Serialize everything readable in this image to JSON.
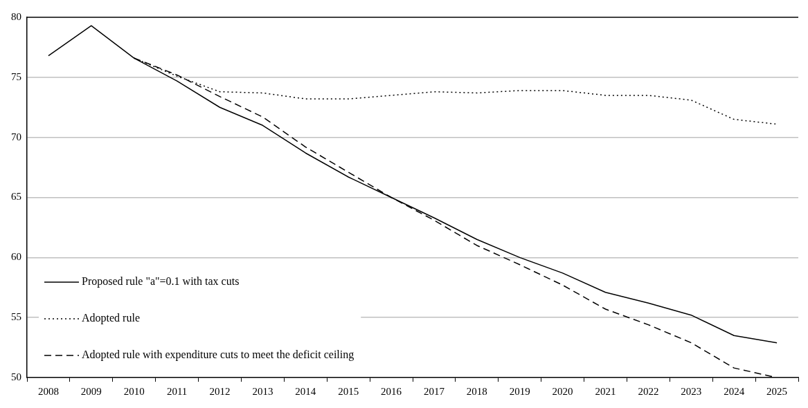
{
  "chart_data": {
    "type": "line",
    "categories": [
      "2008",
      "2009",
      "2010",
      "2011",
      "2012",
      "2013",
      "2014",
      "2015",
      "2016",
      "2017",
      "2018",
      "2019",
      "2020",
      "2021",
      "2022",
      "2023",
      "2024",
      "2025"
    ],
    "series": [
      {
        "name": "Proposed rule \"a\"=0.1 with tax cuts",
        "color": "#000000",
        "line_style": "solid",
        "values": [
          76.8,
          79.3,
          76.6,
          74.7,
          72.5,
          71.0,
          68.7,
          66.7,
          65.0,
          63.3,
          61.5,
          60.0,
          58.7,
          57.1,
          56.2,
          55.2,
          53.5,
          52.9
        ]
      },
      {
        "name": "Adopted rule",
        "color": "#000000",
        "line_style": "dotted",
        "values": [
          null,
          null,
          76.6,
          75.1,
          73.8,
          73.7,
          73.2,
          73.2,
          73.5,
          73.8,
          73.7,
          73.9,
          73.9,
          73.5,
          73.5,
          73.1,
          71.5,
          71.1
        ]
      },
      {
        "name": "Adopted rule with expenditure cuts to meet the deficit ceiling",
        "color": "#000000",
        "line_style": "dashed",
        "values": [
          null,
          null,
          76.6,
          75.2,
          73.4,
          71.7,
          69.2,
          67.1,
          65.0,
          63.1,
          61.0,
          59.4,
          57.7,
          55.7,
          54.4,
          52.9,
          50.8,
          50.0
        ]
      }
    ],
    "ylim": [
      50,
      80
    ],
    "yticks": [
      50,
      55,
      60,
      65,
      70,
      75,
      80
    ],
    "grid": "y",
    "legend": "bottom left",
    "marker": "none"
  }
}
